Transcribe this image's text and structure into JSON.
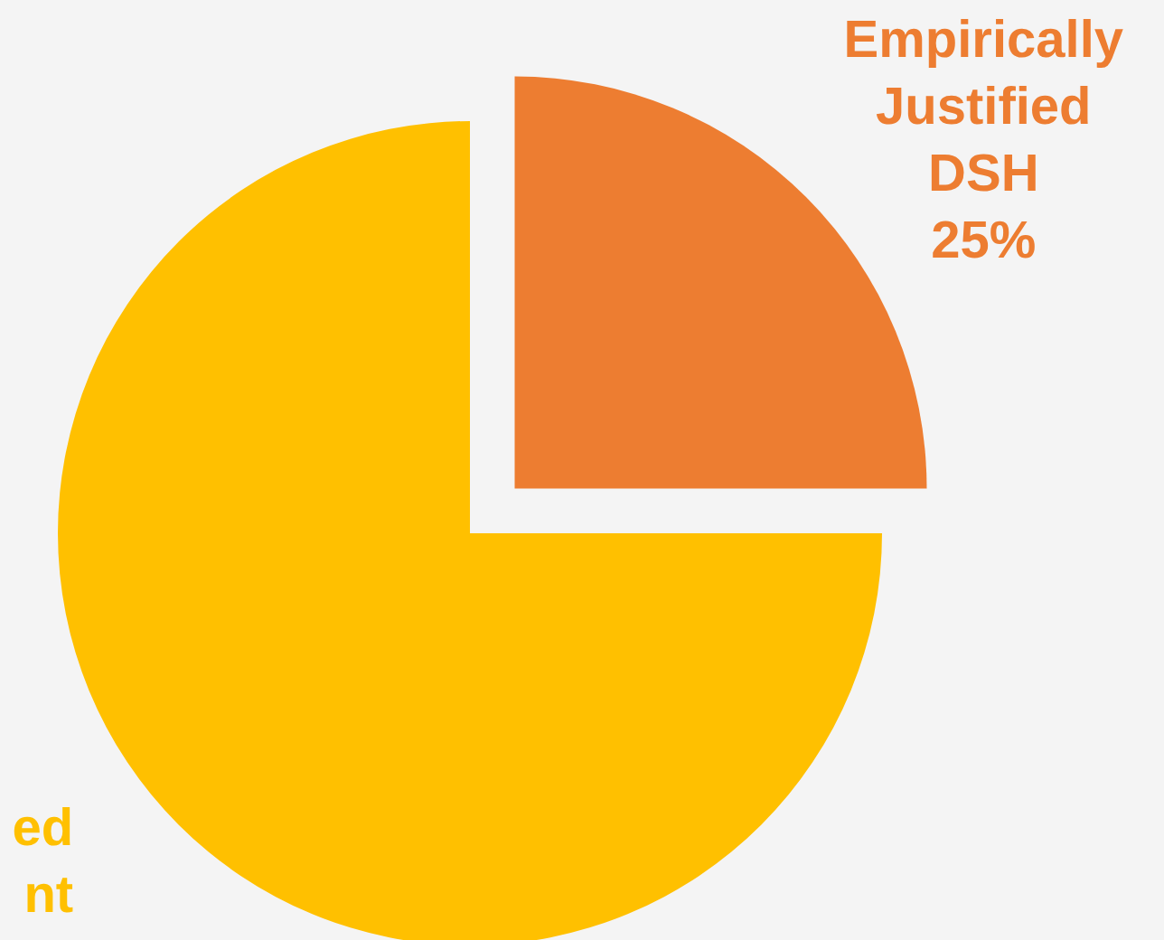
{
  "chart_data": {
    "type": "pie",
    "categories": [
      "Empirically Justified DSH",
      "ed nt"
    ],
    "values": [
      25,
      75
    ],
    "colors": [
      "#ed7d31",
      "#ffc000"
    ],
    "value_labels": [
      "25%",
      null
    ]
  }
}
